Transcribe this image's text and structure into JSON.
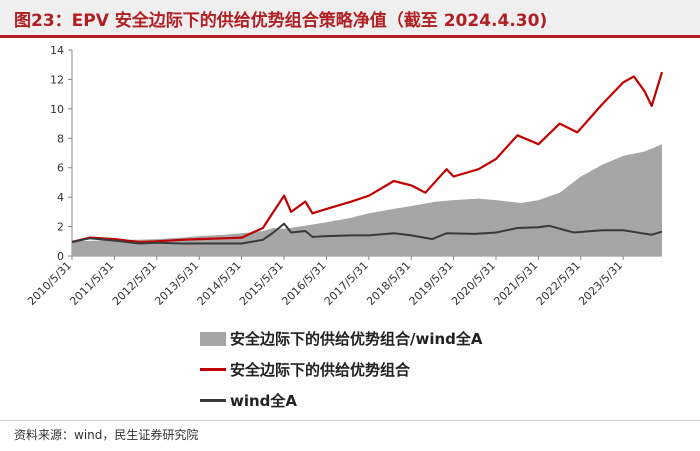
{
  "header": {
    "title": "图23：EPV 安全边际下的供给优势组合策略净值（截至 2024.4.30)"
  },
  "footer": {
    "source": "资料来源：wind，民生证券研究院"
  },
  "colors": {
    "ratio_area": "#a6a6a6",
    "portfolio_line": "#c00000",
    "index_line": "#3a3a3a",
    "title": "#b01f24"
  },
  "chart_data": {
    "type": "line",
    "x_ticks": [
      "2010/5/31",
      "2011/5/31",
      "2012/5/31",
      "2013/5/31",
      "2014/5/31",
      "2015/5/31",
      "2016/5/31",
      "2017/5/31",
      "2018/5/31",
      "2019/5/31",
      "2020/5/31",
      "2021/5/31",
      "2022/5/31",
      "2023/5/31"
    ],
    "x_range": [
      "2010/5/31",
      "2024/4/30"
    ],
    "y_ticks": [
      0,
      2,
      4,
      6,
      8,
      10,
      12,
      14
    ],
    "ylim": [
      0,
      14
    ],
    "series": [
      {
        "name": "安全边际下的供给优势组合/wind全A",
        "style": "area",
        "points": [
          [
            "2010/5/31",
            1.0
          ],
          [
            "2011/1/1",
            1.05
          ],
          [
            "2011/6/1",
            1.1
          ],
          [
            "2012/1/1",
            1.1
          ],
          [
            "2012/6/1",
            1.15
          ],
          [
            "2013/1/1",
            1.25
          ],
          [
            "2013/6/1",
            1.35
          ],
          [
            "2014/1/1",
            1.45
          ],
          [
            "2014/6/1",
            1.55
          ],
          [
            "2014/12/1",
            1.7
          ],
          [
            "2015/3/1",
            1.9
          ],
          [
            "2015/6/1",
            1.85
          ],
          [
            "2015/9/1",
            1.95
          ],
          [
            "2016/1/1",
            2.1
          ],
          [
            "2016/6/1",
            2.3
          ],
          [
            "2017/1/1",
            2.6
          ],
          [
            "2017/6/1",
            2.9
          ],
          [
            "2018/1/1",
            3.2
          ],
          [
            "2018/6/1",
            3.4
          ],
          [
            "2019/1/1",
            3.7
          ],
          [
            "2019/6/1",
            3.8
          ],
          [
            "2020/1/1",
            3.9
          ],
          [
            "2020/6/1",
            3.8
          ],
          [
            "2021/1/1",
            3.6
          ],
          [
            "2021/6/1",
            3.8
          ],
          [
            "2021/12/1",
            4.3
          ],
          [
            "2022/6/1",
            5.4
          ],
          [
            "2022/12/1",
            6.2
          ],
          [
            "2023/6/1",
            6.8
          ],
          [
            "2023/12/1",
            7.1
          ],
          [
            "2024/4/30",
            7.6
          ]
        ]
      },
      {
        "name": "安全边际下的供给优势组合",
        "style": "line",
        "points": [
          [
            "2010/5/31",
            0.95
          ],
          [
            "2010/11/1",
            1.25
          ],
          [
            "2011/6/1",
            1.15
          ],
          [
            "2012/1/1",
            0.95
          ],
          [
            "2012/6/1",
            1.0
          ],
          [
            "2013/1/1",
            1.1
          ],
          [
            "2013/6/1",
            1.15
          ],
          [
            "2014/1/1",
            1.2
          ],
          [
            "2014/6/1",
            1.25
          ],
          [
            "2014/12/1",
            1.9
          ],
          [
            "2015/3/1",
            3.0
          ],
          [
            "2015/6/1",
            4.1
          ],
          [
            "2015/8/1",
            3.0
          ],
          [
            "2015/12/1",
            3.7
          ],
          [
            "2016/2/1",
            2.9
          ],
          [
            "2016/6/1",
            3.2
          ],
          [
            "2017/1/1",
            3.7
          ],
          [
            "2017/6/1",
            4.1
          ],
          [
            "2018/1/1",
            5.1
          ],
          [
            "2018/6/1",
            4.8
          ],
          [
            "2018/10/1",
            4.3
          ],
          [
            "2019/4/1",
            5.9
          ],
          [
            "2019/6/1",
            5.4
          ],
          [
            "2020/1/1",
            5.9
          ],
          [
            "2020/6/1",
            6.6
          ],
          [
            "2020/12/1",
            8.2
          ],
          [
            "2021/6/1",
            7.6
          ],
          [
            "2021/12/1",
            9.0
          ],
          [
            "2022/5/1",
            8.4
          ],
          [
            "2022/12/1",
            10.3
          ],
          [
            "2023/6/1",
            11.8
          ],
          [
            "2023/9/1",
            12.2
          ],
          [
            "2023/12/1",
            11.2
          ],
          [
            "2024/2/1",
            10.2
          ],
          [
            "2024/4/30",
            12.5
          ]
        ]
      },
      {
        "name": "wind全A",
        "style": "line",
        "points": [
          [
            "2010/5/31",
            0.95
          ],
          [
            "2010/11/1",
            1.2
          ],
          [
            "2011/6/1",
            1.05
          ],
          [
            "2012/1/1",
            0.85
          ],
          [
            "2012/6/1",
            0.9
          ],
          [
            "2013/1/1",
            0.85
          ],
          [
            "2013/6/1",
            0.85
          ],
          [
            "2014/1/1",
            0.85
          ],
          [
            "2014/6/1",
            0.85
          ],
          [
            "2014/12/1",
            1.1
          ],
          [
            "2015/3/1",
            1.6
          ],
          [
            "2015/6/1",
            2.2
          ],
          [
            "2015/8/1",
            1.6
          ],
          [
            "2015/12/1",
            1.7
          ],
          [
            "2016/2/1",
            1.3
          ],
          [
            "2016/6/1",
            1.35
          ],
          [
            "2017/1/1",
            1.4
          ],
          [
            "2017/6/1",
            1.4
          ],
          [
            "2018/1/1",
            1.55
          ],
          [
            "2018/6/1",
            1.4
          ],
          [
            "2018/12/1",
            1.15
          ],
          [
            "2019/4/1",
            1.55
          ],
          [
            "2019/12/1",
            1.5
          ],
          [
            "2020/6/1",
            1.6
          ],
          [
            "2020/12/1",
            1.9
          ],
          [
            "2021/6/1",
            1.95
          ],
          [
            "2021/9/1",
            2.05
          ],
          [
            "2022/4/1",
            1.6
          ],
          [
            "2022/12/1",
            1.75
          ],
          [
            "2023/6/1",
            1.75
          ],
          [
            "2024/2/1",
            1.45
          ],
          [
            "2024/4/30",
            1.65
          ]
        ]
      }
    ]
  }
}
